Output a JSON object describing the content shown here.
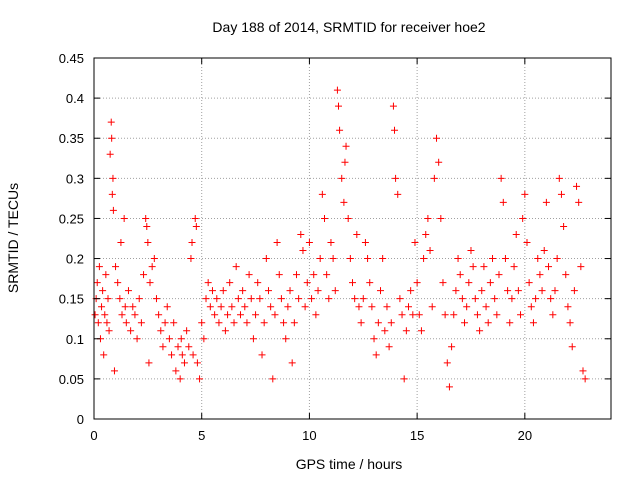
{
  "chart_data": {
    "type": "scatter",
    "title": "Day 188 of 2014, SRMTID for receiver hoe2",
    "xlabel": "GPS time / hours",
    "ylabel": "SRMTID / TECUs",
    "xlim": [
      0,
      24
    ],
    "ylim": [
      0,
      0.45
    ],
    "xticks": [
      0,
      5,
      10,
      15,
      20
    ],
    "xtick_labels": [
      "0",
      "5",
      "10",
      "15",
      "20"
    ],
    "yticks": [
      0,
      0.05,
      0.1,
      0.15,
      0.2,
      0.25,
      0.3,
      0.35,
      0.4,
      0.45
    ],
    "ytick_labels": [
      "0",
      "0.05",
      "0.1",
      "0.15",
      "0.2",
      "0.25",
      "0.3",
      "0.35",
      "0.4",
      "0.45"
    ],
    "grid": true,
    "marker": "+",
    "color": "#ff0000",
    "series": [
      {
        "name": "SRMTID",
        "points": [
          [
            0.05,
            0.13
          ],
          [
            0.1,
            0.15
          ],
          [
            0.15,
            0.17
          ],
          [
            0.2,
            0.12
          ],
          [
            0.25,
            0.19
          ],
          [
            0.3,
            0.1
          ],
          [
            0.35,
            0.14
          ],
          [
            0.4,
            0.16
          ],
          [
            0.45,
            0.08
          ],
          [
            0.5,
            0.13
          ],
          [
            0.55,
            0.18
          ],
          [
            0.6,
            0.12
          ],
          [
            0.65,
            0.15
          ],
          [
            0.7,
            0.11
          ],
          [
            0.75,
            0.33
          ],
          [
            0.8,
            0.37
          ],
          [
            0.82,
            0.35
          ],
          [
            0.85,
            0.28
          ],
          [
            0.88,
            0.3
          ],
          [
            0.9,
            0.26
          ],
          [
            0.95,
            0.06
          ],
          [
            1.0,
            0.19
          ],
          [
            1.1,
            0.17
          ],
          [
            1.2,
            0.15
          ],
          [
            1.25,
            0.22
          ],
          [
            1.3,
            0.13
          ],
          [
            1.4,
            0.25
          ],
          [
            1.45,
            0.14
          ],
          [
            1.5,
            0.12
          ],
          [
            1.6,
            0.16
          ],
          [
            1.7,
            0.11
          ],
          [
            1.8,
            0.14
          ],
          [
            1.9,
            0.13
          ],
          [
            2.0,
            0.1
          ],
          [
            2.1,
            0.15
          ],
          [
            2.2,
            0.12
          ],
          [
            2.3,
            0.18
          ],
          [
            2.4,
            0.25
          ],
          [
            2.45,
            0.24
          ],
          [
            2.5,
            0.22
          ],
          [
            2.55,
            0.07
          ],
          [
            2.6,
            0.17
          ],
          [
            2.7,
            0.19
          ],
          [
            2.8,
            0.2
          ],
          [
            2.9,
            0.15
          ],
          [
            3.0,
            0.13
          ],
          [
            3.1,
            0.11
          ],
          [
            3.2,
            0.09
          ],
          [
            3.3,
            0.12
          ],
          [
            3.4,
            0.14
          ],
          [
            3.5,
            0.1
          ],
          [
            3.6,
            0.08
          ],
          [
            3.7,
            0.12
          ],
          [
            3.8,
            0.06
          ],
          [
            3.9,
            0.09
          ],
          [
            4.0,
            0.05
          ],
          [
            4.05,
            0.1
          ],
          [
            4.1,
            0.08
          ],
          [
            4.2,
            0.07
          ],
          [
            4.3,
            0.11
          ],
          [
            4.4,
            0.09
          ],
          [
            4.5,
            0.2
          ],
          [
            4.55,
            0.22
          ],
          [
            4.6,
            0.08
          ],
          [
            4.7,
            0.25
          ],
          [
            4.75,
            0.24
          ],
          [
            4.8,
            0.07
          ],
          [
            4.9,
            0.05
          ],
          [
            5.0,
            0.12
          ],
          [
            5.1,
            0.1
          ],
          [
            5.2,
            0.15
          ],
          [
            5.3,
            0.17
          ],
          [
            5.4,
            0.14
          ],
          [
            5.5,
            0.16
          ],
          [
            5.6,
            0.13
          ],
          [
            5.7,
            0.15
          ],
          [
            5.8,
            0.12
          ],
          [
            5.9,
            0.14
          ],
          [
            6.0,
            0.16
          ],
          [
            6.1,
            0.11
          ],
          [
            6.2,
            0.13
          ],
          [
            6.3,
            0.17
          ],
          [
            6.4,
            0.14
          ],
          [
            6.5,
            0.12
          ],
          [
            6.6,
            0.19
          ],
          [
            6.7,
            0.15
          ],
          [
            6.8,
            0.13
          ],
          [
            6.9,
            0.16
          ],
          [
            7.0,
            0.14
          ],
          [
            7.1,
            0.12
          ],
          [
            7.2,
            0.18
          ],
          [
            7.3,
            0.15
          ],
          [
            7.4,
            0.1
          ],
          [
            7.5,
            0.13
          ],
          [
            7.6,
            0.17
          ],
          [
            7.7,
            0.15
          ],
          [
            7.8,
            0.08
          ],
          [
            7.9,
            0.12
          ],
          [
            8.0,
            0.2
          ],
          [
            8.1,
            0.16
          ],
          [
            8.2,
            0.14
          ],
          [
            8.3,
            0.05
          ],
          [
            8.4,
            0.13
          ],
          [
            8.5,
            0.22
          ],
          [
            8.6,
            0.18
          ],
          [
            8.7,
            0.15
          ],
          [
            8.8,
            0.12
          ],
          [
            8.9,
            0.1
          ],
          [
            9.0,
            0.14
          ],
          [
            9.1,
            0.16
          ],
          [
            9.2,
            0.07
          ],
          [
            9.3,
            0.12
          ],
          [
            9.4,
            0.18
          ],
          [
            9.5,
            0.15
          ],
          [
            9.6,
            0.23
          ],
          [
            9.7,
            0.21
          ],
          [
            9.8,
            0.14
          ],
          [
            9.9,
            0.17
          ],
          [
            10.0,
            0.22
          ],
          [
            10.1,
            0.15
          ],
          [
            10.2,
            0.18
          ],
          [
            10.3,
            0.13
          ],
          [
            10.4,
            0.16
          ],
          [
            10.5,
            0.2
          ],
          [
            10.6,
            0.28
          ],
          [
            10.7,
            0.25
          ],
          [
            10.8,
            0.18
          ],
          [
            10.9,
            0.15
          ],
          [
            11.0,
            0.22
          ],
          [
            11.1,
            0.2
          ],
          [
            11.2,
            0.16
          ],
          [
            11.3,
            0.41
          ],
          [
            11.35,
            0.39
          ],
          [
            11.4,
            0.36
          ],
          [
            11.5,
            0.3
          ],
          [
            11.6,
            0.27
          ],
          [
            11.65,
            0.32
          ],
          [
            11.7,
            0.34
          ],
          [
            11.8,
            0.25
          ],
          [
            11.9,
            0.2
          ],
          [
            12.0,
            0.17
          ],
          [
            12.1,
            0.15
          ],
          [
            12.2,
            0.23
          ],
          [
            12.3,
            0.14
          ],
          [
            12.4,
            0.12
          ],
          [
            12.5,
            0.15
          ],
          [
            12.6,
            0.22
          ],
          [
            12.7,
            0.2
          ],
          [
            12.8,
            0.17
          ],
          [
            12.9,
            0.14
          ],
          [
            13.0,
            0.1
          ],
          [
            13.1,
            0.08
          ],
          [
            13.2,
            0.12
          ],
          [
            13.3,
            0.16
          ],
          [
            13.4,
            0.2
          ],
          [
            13.5,
            0.11
          ],
          [
            13.6,
            0.14
          ],
          [
            13.7,
            0.09
          ],
          [
            13.8,
            0.12
          ],
          [
            13.9,
            0.39
          ],
          [
            13.95,
            0.36
          ],
          [
            14.0,
            0.3
          ],
          [
            14.1,
            0.28
          ],
          [
            14.2,
            0.15
          ],
          [
            14.3,
            0.13
          ],
          [
            14.4,
            0.05
          ],
          [
            14.5,
            0.11
          ],
          [
            14.6,
            0.14
          ],
          [
            14.7,
            0.16
          ],
          [
            14.8,
            0.13
          ],
          [
            14.9,
            0.22
          ],
          [
            15.0,
            0.17
          ],
          [
            15.1,
            0.13
          ],
          [
            15.2,
            0.11
          ],
          [
            15.3,
            0.2
          ],
          [
            15.4,
            0.23
          ],
          [
            15.5,
            0.25
          ],
          [
            15.6,
            0.21
          ],
          [
            15.7,
            0.14
          ],
          [
            15.8,
            0.3
          ],
          [
            15.9,
            0.35
          ],
          [
            16.0,
            0.32
          ],
          [
            16.1,
            0.25
          ],
          [
            16.2,
            0.17
          ],
          [
            16.3,
            0.13
          ],
          [
            16.4,
            0.07
          ],
          [
            16.5,
            0.04
          ],
          [
            16.6,
            0.09
          ],
          [
            16.7,
            0.13
          ],
          [
            16.8,
            0.16
          ],
          [
            16.9,
            0.2
          ],
          [
            17.0,
            0.18
          ],
          [
            17.1,
            0.15
          ],
          [
            17.2,
            0.12
          ],
          [
            17.3,
            0.14
          ],
          [
            17.4,
            0.17
          ],
          [
            17.5,
            0.21
          ],
          [
            17.6,
            0.19
          ],
          [
            17.7,
            0.15
          ],
          [
            17.8,
            0.13
          ],
          [
            17.9,
            0.11
          ],
          [
            18.0,
            0.16
          ],
          [
            18.1,
            0.19
          ],
          [
            18.2,
            0.14
          ],
          [
            18.3,
            0.12
          ],
          [
            18.4,
            0.17
          ],
          [
            18.5,
            0.2
          ],
          [
            18.6,
            0.15
          ],
          [
            18.7,
            0.13
          ],
          [
            18.8,
            0.18
          ],
          [
            18.9,
            0.3
          ],
          [
            19.0,
            0.27
          ],
          [
            19.1,
            0.2
          ],
          [
            19.2,
            0.16
          ],
          [
            19.3,
            0.12
          ],
          [
            19.4,
            0.15
          ],
          [
            19.5,
            0.19
          ],
          [
            19.6,
            0.23
          ],
          [
            19.7,
            0.16
          ],
          [
            19.8,
            0.13
          ],
          [
            19.9,
            0.25
          ],
          [
            20.0,
            0.28
          ],
          [
            20.1,
            0.22
          ],
          [
            20.2,
            0.17
          ],
          [
            20.3,
            0.14
          ],
          [
            20.4,
            0.12
          ],
          [
            20.5,
            0.15
          ],
          [
            20.6,
            0.2
          ],
          [
            20.7,
            0.18
          ],
          [
            20.8,
            0.16
          ],
          [
            20.9,
            0.21
          ],
          [
            21.0,
            0.27
          ],
          [
            21.1,
            0.19
          ],
          [
            21.2,
            0.15
          ],
          [
            21.3,
            0.13
          ],
          [
            21.4,
            0.16
          ],
          [
            21.5,
            0.2
          ],
          [
            21.6,
            0.3
          ],
          [
            21.7,
            0.28
          ],
          [
            21.8,
            0.24
          ],
          [
            21.9,
            0.18
          ],
          [
            22.0,
            0.14
          ],
          [
            22.1,
            0.12
          ],
          [
            22.2,
            0.09
          ],
          [
            22.3,
            0.16
          ],
          [
            22.4,
            0.29
          ],
          [
            22.5,
            0.27
          ],
          [
            22.6,
            0.19
          ],
          [
            22.7,
            0.06
          ],
          [
            22.8,
            0.05
          ]
        ]
      }
    ]
  }
}
